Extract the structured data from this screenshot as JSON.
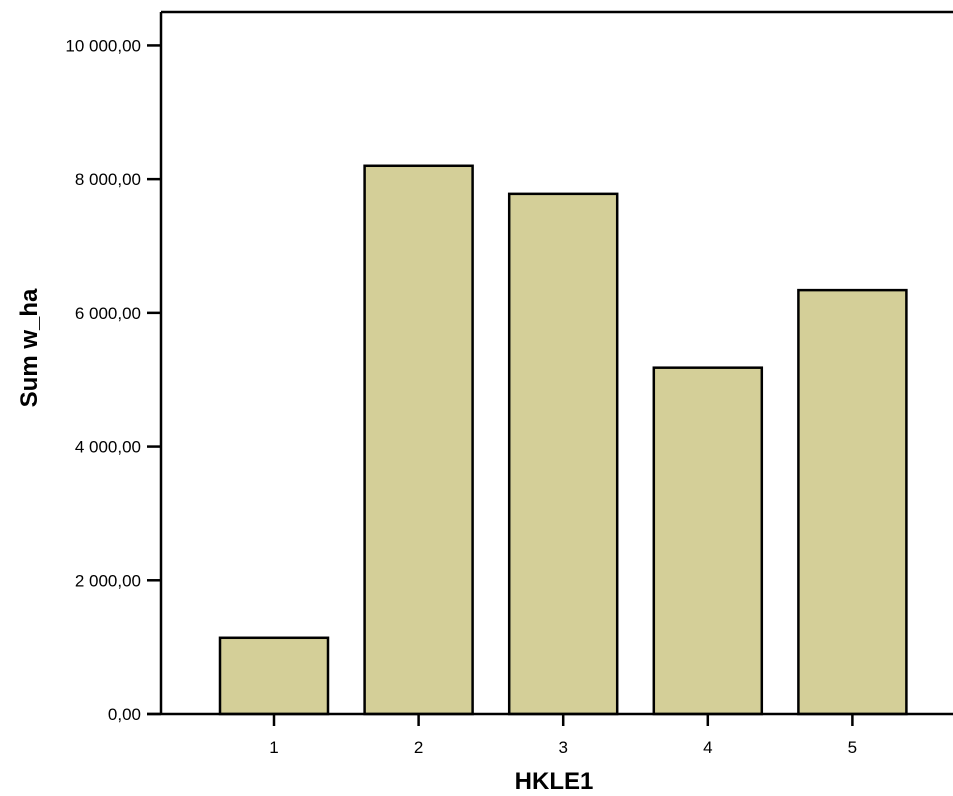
{
  "chart_data": {
    "type": "bar",
    "categories": [
      "1",
      "2",
      "3",
      "4",
      "5"
    ],
    "values": [
      1140,
      8200,
      7780,
      5180,
      6340
    ],
    "xlabel": "HKLE1",
    "ylabel": "Sum w_ha",
    "ylim": [
      0,
      10000
    ],
    "yticks": [
      0,
      2000,
      4000,
      6000,
      8000,
      10000
    ],
    "ytick_labels": [
      "0,00",
      "2 000,00",
      "4 000,00",
      "6 000,00",
      "8 000,00",
      "10 000,00"
    ],
    "grid": false,
    "legend": "none",
    "bar_color": "#d4cf98",
    "bar_edge_color": "#000000"
  }
}
